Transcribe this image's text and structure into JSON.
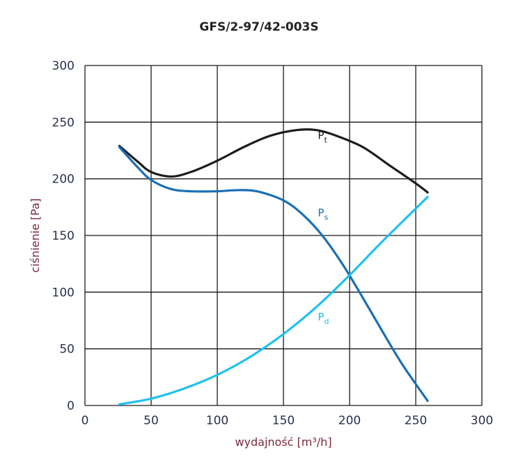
{
  "chart_data": {
    "type": "line",
    "title": "GFS/2-97/42-003S",
    "xlabel": "wydajność [m³/h]",
    "ylabel": "ciśnienie [Pa]",
    "xlim": [
      0,
      300
    ],
    "ylim": [
      0,
      300
    ],
    "xticks": [
      0,
      50,
      100,
      150,
      200,
      250,
      300
    ],
    "yticks": [
      0,
      50,
      100,
      150,
      200,
      250,
      300
    ],
    "grid": true,
    "series": [
      {
        "name": "Pt",
        "sub": "t",
        "base": "P",
        "color": "#1c1c1c",
        "label_at": [
          176,
          235
        ],
        "points": [
          [
            26,
            229
          ],
          [
            40,
            215
          ],
          [
            50,
            206
          ],
          [
            65,
            202
          ],
          [
            80,
            206
          ],
          [
            100,
            216
          ],
          [
            120,
            228
          ],
          [
            140,
            238
          ],
          [
            160,
            243
          ],
          [
            175,
            243
          ],
          [
            190,
            238
          ],
          [
            210,
            228
          ],
          [
            230,
            212
          ],
          [
            250,
            196
          ],
          [
            259,
            188
          ]
        ]
      },
      {
        "name": "Ps",
        "sub": "s",
        "base": "P",
        "color": "#1a6fb5",
        "label_at": [
          176,
          167
        ],
        "points": [
          [
            26,
            228
          ],
          [
            40,
            210
          ],
          [
            50,
            199
          ],
          [
            65,
            191
          ],
          [
            80,
            189
          ],
          [
            100,
            189
          ],
          [
            115,
            190
          ],
          [
            130,
            189
          ],
          [
            150,
            181
          ],
          [
            165,
            168
          ],
          [
            180,
            149
          ],
          [
            195,
            124
          ],
          [
            210,
            95
          ],
          [
            225,
            65
          ],
          [
            240,
            36
          ],
          [
            259,
            4
          ]
        ]
      },
      {
        "name": "Pd",
        "sub": "d",
        "base": "P",
        "color": "#1ec0f0",
        "label_at": [
          176,
          75
        ],
        "points": [
          [
            26,
            1
          ],
          [
            50,
            6
          ],
          [
            75,
            15
          ],
          [
            100,
            27
          ],
          [
            125,
            43
          ],
          [
            150,
            63
          ],
          [
            175,
            87
          ],
          [
            200,
            115
          ],
          [
            225,
            145
          ],
          [
            259,
            184
          ]
        ]
      }
    ]
  }
}
